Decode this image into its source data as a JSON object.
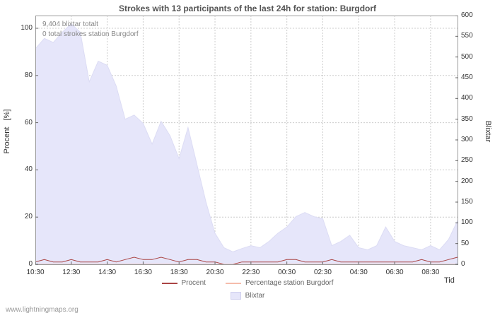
{
  "chart_data": {
    "type": "area",
    "title": "Strokes with 13 participants of the last 24h for station: Burgdorf",
    "xlabel": "Tid",
    "ylabel_left": "Procent   [%]",
    "ylabel_right": "Blixtar",
    "annotations": [
      "9,404 blixtar totalt",
      "0 total strokes station Burgdorf"
    ],
    "grid": true,
    "legend_position": "bottom",
    "ylim_left": [
      0,
      100
    ],
    "ylim_right": [
      0,
      600
    ],
    "y_left_ticks": [
      0,
      20,
      40,
      60,
      80,
      100
    ],
    "y_right_ticks": [
      0,
      50,
      100,
      150,
      200,
      250,
      300,
      350,
      400,
      450,
      500,
      550,
      600
    ],
    "x_tick_labels": [
      "10:30",
      "12:30",
      "14:30",
      "16:30",
      "18:30",
      "20:30",
      "22:30",
      "00:30",
      "02:30",
      "04:30",
      "06:30",
      "08:30"
    ],
    "x_tick_indices": [
      0,
      4,
      8,
      12,
      16,
      20,
      24,
      28,
      32,
      36,
      40,
      44
    ],
    "x": [
      "10:30",
      "11:00",
      "11:30",
      "12:00",
      "12:30",
      "13:00",
      "13:30",
      "14:00",
      "14:30",
      "15:00",
      "15:30",
      "16:00",
      "16:30",
      "17:00",
      "17:30",
      "18:00",
      "18:30",
      "19:00",
      "19:30",
      "20:00",
      "20:30",
      "21:00",
      "21:30",
      "22:00",
      "22:30",
      "23:00",
      "23:30",
      "00:00",
      "00:30",
      "01:00",
      "01:30",
      "02:00",
      "02:30",
      "03:00",
      "03:30",
      "04:00",
      "04:30",
      "05:00",
      "05:30",
      "06:00",
      "06:30",
      "07:00",
      "07:30",
      "08:00",
      "08:30",
      "09:00",
      "09:30",
      "10:00"
    ],
    "series": [
      {
        "name": "Blixtar",
        "type": "area",
        "axis": "right",
        "color": "#e6e6fa",
        "values": [
          520,
          545,
          535,
          560,
          580,
          560,
          440,
          490,
          480,
          430,
          350,
          360,
          340,
          290,
          345,
          310,
          255,
          330,
          240,
          150,
          75,
          40,
          30,
          38,
          45,
          40,
          55,
          75,
          90,
          115,
          125,
          115,
          110,
          45,
          55,
          70,
          40,
          35,
          45,
          90,
          55,
          45,
          40,
          35,
          45,
          35,
          60,
          105
        ]
      },
      {
        "name": "Procent",
        "type": "line",
        "axis": "left",
        "color": "#aa4444",
        "values": [
          1,
          2,
          1,
          1,
          2,
          1,
          1,
          1,
          2,
          1,
          2,
          3,
          2,
          2,
          3,
          2,
          1,
          2,
          2,
          1,
          1,
          0,
          0,
          1,
          1,
          1,
          1,
          1,
          2,
          2,
          1,
          1,
          1,
          2,
          1,
          1,
          1,
          1,
          1,
          1,
          1,
          1,
          1,
          2,
          1,
          1,
          2,
          3
        ]
      },
      {
        "name": "Percentage station Burgdorf",
        "type": "line",
        "axis": "left",
        "color": "#f5bcab",
        "values": [
          0,
          0,
          0,
          0,
          0,
          0,
          0,
          0,
          0,
          0,
          0,
          0,
          0,
          0,
          0,
          0,
          0,
          0,
          0,
          0,
          0,
          0,
          0,
          0,
          0,
          0,
          0,
          0,
          0,
          0,
          0,
          0,
          0,
          0,
          0,
          0,
          0,
          0,
          0,
          0,
          0,
          0,
          0,
          0,
          0,
          0,
          0,
          0
        ]
      }
    ],
    "legend": [
      {
        "label": "Procent",
        "swatch": "line",
        "color": "#aa4444"
      },
      {
        "label": "Percentage station Burgdorf",
        "swatch": "line",
        "color": "#f5bcab"
      },
      {
        "label": "Blixtar",
        "swatch": "area",
        "color": "#e6e6fa"
      }
    ]
  },
  "footer": {
    "watermark": "www.lightningmaps.org"
  }
}
